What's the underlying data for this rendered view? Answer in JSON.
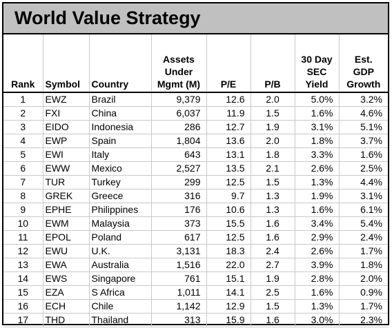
{
  "title": "World Value Strategy",
  "headers": {
    "rank": "Rank",
    "symbol": "Symbol",
    "country": "Country",
    "assets": [
      "Assets",
      "Under",
      "Mgmt (M)"
    ],
    "pe": "P/E",
    "pb": "P/B",
    "yield": [
      "30 Day",
      "SEC",
      "Yield"
    ],
    "gdp": [
      "Est.",
      "GDP",
      "Growth"
    ]
  },
  "rows": [
    {
      "rank": "1",
      "symbol": "EWZ",
      "country": "Brazil",
      "assets": "9,379",
      "pe": "12.6",
      "pb": "2.0",
      "yield": "5.0%",
      "gdp": "3.2%"
    },
    {
      "rank": "2",
      "symbol": "FXI",
      "country": "China",
      "assets": "6,037",
      "pe": "11.9",
      "pb": "1.5",
      "yield": "1.6%",
      "gdp": "4.6%"
    },
    {
      "rank": "3",
      "symbol": "EIDO",
      "country": "Indonesia",
      "assets": "286",
      "pe": "12.7",
      "pb": "1.9",
      "yield": "3.1%",
      "gdp": "5.1%"
    },
    {
      "rank": "4",
      "symbol": "EWP",
      "country": "Spain",
      "assets": "1,804",
      "pe": "13.6",
      "pb": "2.0",
      "yield": "1.8%",
      "gdp": "3.7%"
    },
    {
      "rank": "5",
      "symbol": "EWI",
      "country": "Italy",
      "assets": "643",
      "pe": "13.1",
      "pb": "1.8",
      "yield": "3.3%",
      "gdp": "1.6%"
    },
    {
      "rank": "6",
      "symbol": "EWW",
      "country": "Mexico",
      "assets": "2,527",
      "pe": "13.5",
      "pb": "2.1",
      "yield": "2.6%",
      "gdp": "2.5%"
    },
    {
      "rank": "7",
      "symbol": "TUR",
      "country": "Turkey",
      "assets": "299",
      "pe": "12.5",
      "pb": "1.5",
      "yield": "1.3%",
      "gdp": "4.4%"
    },
    {
      "rank": "8",
      "symbol": "GREK",
      "country": "Greece",
      "assets": "316",
      "pe": "9.7",
      "pb": "1.3",
      "yield": "1.9%",
      "gdp": "3.1%"
    },
    {
      "rank": "9",
      "symbol": "EPHE",
      "country": "Philippines",
      "assets": "176",
      "pe": "10.6",
      "pb": "1.3",
      "yield": "1.6%",
      "gdp": "6.1%"
    },
    {
      "rank": "10",
      "symbol": "EWM",
      "country": "Malaysia",
      "assets": "373",
      "pe": "15.5",
      "pb": "1.6",
      "yield": "3.4%",
      "gdp": "5.4%"
    },
    {
      "rank": "11",
      "symbol": "EPOL",
      "country": "Poland",
      "assets": "617",
      "pe": "12.5",
      "pb": "1.6",
      "yield": "2.9%",
      "gdp": "2.4%"
    },
    {
      "rank": "12",
      "symbol": "EWU",
      "country": "U.K.",
      "assets": "3,131",
      "pe": "18.3",
      "pb": "2.4",
      "yield": "2.6%",
      "gdp": "1.7%"
    },
    {
      "rank": "13",
      "symbol": "EWA",
      "country": "Australia",
      "assets": "1,516",
      "pe": "22.0",
      "pb": "2.7",
      "yield": "3.9%",
      "gdp": "1.8%"
    },
    {
      "rank": "14",
      "symbol": "EWS",
      "country": "Singapore",
      "assets": "761",
      "pe": "15.1",
      "pb": "1.9",
      "yield": "2.8%",
      "gdp": "2.0%"
    },
    {
      "rank": "15",
      "symbol": "EZA",
      "country": "S Africa",
      "assets": "1,011",
      "pe": "14.1",
      "pb": "2.5",
      "yield": "1.6%",
      "gdp": "0.9%"
    },
    {
      "rank": "16",
      "symbol": "ECH",
      "country": "Chile",
      "assets": "1,142",
      "pe": "12.9",
      "pb": "1.5",
      "yield": "1.3%",
      "gdp": "1.7%"
    },
    {
      "rank": "17",
      "symbol": "THD",
      "country": "Thailand",
      "assets": "313",
      "pe": "15.9",
      "pb": "1.6",
      "yield": "3.0%",
      "gdp": "2.3%"
    }
  ]
}
